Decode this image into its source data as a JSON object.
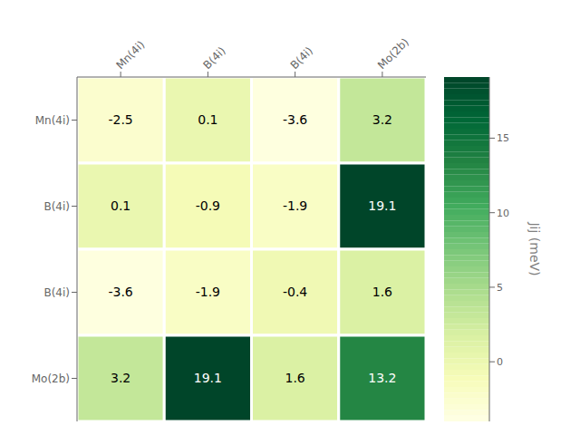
{
  "chart_data": {
    "type": "heatmap",
    "categories": [
      "Mn(4i)",
      "B(4i)",
      "B(4i)",
      "Mo(2b)"
    ],
    "row_categories": [
      "Mn(4i)",
      "B(4i)",
      "B(4i)",
      "Mo(2b)"
    ],
    "matrix": [
      [
        -2.5,
        0.1,
        -3.6,
        3.2
      ],
      [
        0.1,
        -0.9,
        -1.9,
        19.1
      ],
      [
        -3.6,
        -1.9,
        -0.4,
        1.6
      ],
      [
        3.2,
        19.1,
        1.6,
        13.2
      ]
    ],
    "colorbar_label": "Jij (meV)",
    "colorbar_range": [
      -4,
      19.1
    ],
    "colorbar_ticks": [
      0,
      5,
      10,
      15
    ],
    "data_labels": true,
    "grid": true
  }
}
